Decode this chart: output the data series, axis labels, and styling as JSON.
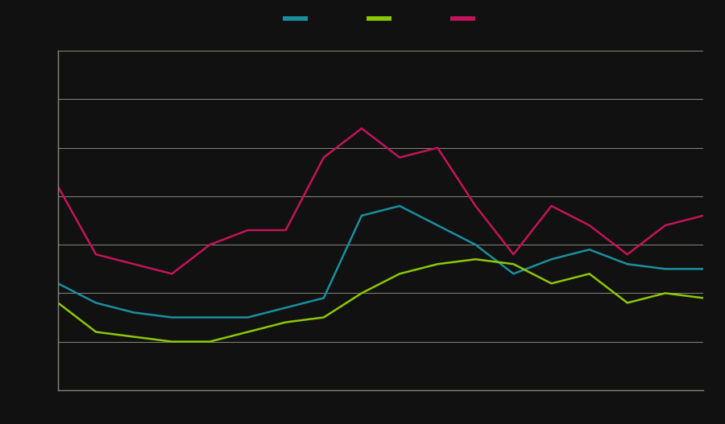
{
  "x": [
    0,
    1,
    2,
    3,
    4,
    5,
    6,
    7,
    8,
    9,
    10,
    11,
    12,
    13,
    14,
    15,
    16,
    17
  ],
  "line_teal": [
    22,
    18,
    16,
    15,
    15,
    15,
    17,
    19,
    36,
    38,
    34,
    30,
    24,
    27,
    29,
    26,
    25,
    25
  ],
  "line_green": [
    18,
    12,
    11,
    10,
    10,
    12,
    14,
    15,
    20,
    24,
    26,
    27,
    26,
    22,
    24,
    18,
    20,
    19
  ],
  "line_crimson": [
    42,
    28,
    26,
    24,
    30,
    33,
    33,
    48,
    54,
    48,
    50,
    38,
    28,
    38,
    34,
    28,
    34,
    36
  ],
  "line_teal_color": "#1a8fa0",
  "line_green_color": "#8cc800",
  "line_crimson_color": "#c4135a",
  "background_color": "#111111",
  "plot_bg_color": "#111111",
  "grid_color": "#888877",
  "spine_color": "#888877",
  "ylim": [
    0,
    70
  ],
  "yticks": [
    0,
    10,
    20,
    30,
    40,
    50,
    60,
    70
  ],
  "linewidth": 1.8
}
